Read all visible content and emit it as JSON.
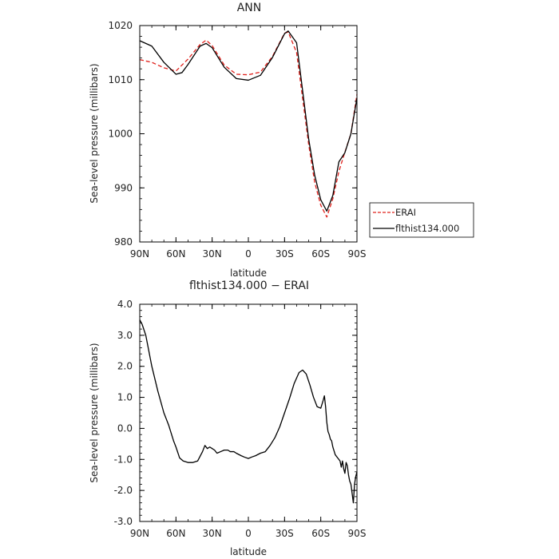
{
  "chart_data": [
    {
      "type": "line",
      "title": "ANN",
      "xlabel": "latitude",
      "ylabel": "Sea-level pressure (millibars)",
      "xlim": [
        90,
        -90
      ],
      "ylim": [
        980,
        1020
      ],
      "x_ticks": [
        90,
        60,
        30,
        0,
        -30,
        -60,
        -90
      ],
      "x_tick_labels": [
        "90N",
        "60N",
        "30N",
        "0",
        "30S",
        "60S",
        "90S"
      ],
      "y_ticks": [
        980,
        990,
        1000,
        1010,
        1020
      ],
      "y_tick_labels": [
        "980",
        "990",
        "1000",
        "1010",
        "1020"
      ],
      "legend_position": "right",
      "series": [
        {
          "name": "ERAI",
          "color": "#e0201b",
          "dash": "dashed",
          "x": [
            90,
            80,
            70,
            60,
            50,
            40,
            35,
            30,
            20,
            10,
            0,
            -10,
            -20,
            -30,
            -33,
            -40,
            -50,
            -55,
            -60,
            -65,
            -70,
            -75,
            -80,
            -85,
            -90
          ],
          "y": [
            1013.7,
            1013.2,
            1012.2,
            1011.6,
            1013.8,
            1016.5,
            1017.3,
            1016.3,
            1012.7,
            1011.0,
            1010.9,
            1011.4,
            1014.3,
            1018.6,
            1018.8,
            1015.0,
            998.0,
            991.0,
            986.8,
            984.6,
            988.0,
            993.0,
            996.6,
            1000.0,
            1007.3
          ]
        },
        {
          "name": "flthist134.000",
          "color": "#000000",
          "dash": "solid",
          "x": [
            90,
            80,
            70,
            60,
            55,
            50,
            40,
            35,
            30,
            20,
            10,
            0,
            -10,
            -20,
            -30,
            -33,
            -40,
            -50,
            -55,
            -60,
            -65,
            -70,
            -75,
            -80,
            -85,
            -90
          ],
          "y": [
            1017.2,
            1016.2,
            1013.2,
            1011.0,
            1011.3,
            1012.8,
            1016.2,
            1016.7,
            1015.9,
            1012.3,
            1010.2,
            1009.9,
            1010.8,
            1014.1,
            1018.5,
            1019.0,
            1016.8,
            999.0,
            992.3,
            987.8,
            985.7,
            988.6,
            994.8,
            996.5,
            1000.0,
            1006.6
          ]
        }
      ]
    },
    {
      "type": "line",
      "title": "flthist134.000 − ERAI",
      "xlabel": "latitude",
      "ylabel": "Sea-level pressure (millibars)",
      "xlim": [
        90,
        -90
      ],
      "ylim": [
        -3.0,
        4.0
      ],
      "x_ticks": [
        90,
        60,
        30,
        0,
        -30,
        -60,
        -90
      ],
      "x_tick_labels": [
        "90N",
        "60N",
        "30N",
        "0",
        "30S",
        "60S",
        "90S"
      ],
      "y_ticks": [
        -3,
        -2,
        -1,
        0,
        1,
        2,
        3,
        4
      ],
      "y_tick_labels": [
        "-3.0",
        "-2.0",
        "-1.0",
        "0.0",
        "1.0",
        "2.0",
        "3.0",
        "4.0"
      ],
      "series": [
        {
          "color": "#000000",
          "x": [
            90,
            88,
            85,
            80,
            75,
            70,
            66,
            62,
            60,
            57,
            54,
            50,
            46,
            42,
            38,
            36,
            34,
            32,
            30,
            28,
            26,
            23,
            20,
            17,
            15,
            12,
            10,
            6,
            3,
            0,
            -3,
            -6,
            -10,
            -14,
            -18,
            -22,
            -26,
            -30,
            -34,
            -38,
            -42,
            -45,
            -48,
            -51,
            -54,
            -57,
            -60,
            -62,
            -63,
            -64,
            -65,
            -66,
            -67,
            -68,
            -69,
            -70,
            -72,
            -74,
            -76,
            -77,
            -78,
            -79,
            -80,
            -81,
            -82,
            -83,
            -84,
            -85,
            -86,
            -87,
            -88,
            -89,
            -90
          ],
          "y": [
            3.5,
            3.35,
            3.0,
            2.0,
            1.2,
            0.5,
            0.1,
            -0.4,
            -0.6,
            -0.95,
            -1.05,
            -1.1,
            -1.1,
            -1.05,
            -0.75,
            -0.55,
            -0.65,
            -0.6,
            -0.65,
            -0.7,
            -0.8,
            -0.75,
            -0.7,
            -0.7,
            -0.75,
            -0.75,
            -0.8,
            -0.88,
            -0.93,
            -0.97,
            -0.92,
            -0.88,
            -0.8,
            -0.75,
            -0.55,
            -0.3,
            0.05,
            0.5,
            0.95,
            1.45,
            1.8,
            1.88,
            1.75,
            1.4,
            1.0,
            0.7,
            0.65,
            0.9,
            1.05,
            0.7,
            0.2,
            -0.1,
            -0.2,
            -0.35,
            -0.4,
            -0.6,
            -0.85,
            -0.95,
            -1.05,
            -1.25,
            -1.05,
            -1.3,
            -1.45,
            -1.1,
            -1.2,
            -1.5,
            -1.7,
            -1.8,
            -2.1,
            -2.4,
            -1.8,
            -1.55,
            -1.4
          ]
        }
      ]
    }
  ]
}
